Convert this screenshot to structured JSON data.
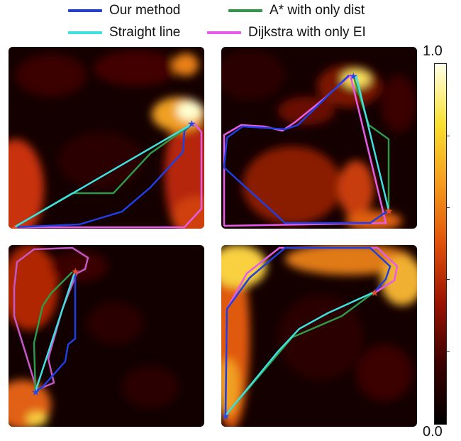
{
  "legend": {
    "items": [
      {
        "label": "Our method",
        "color": "#1f3fe0"
      },
      {
        "label": "A* with only dist",
        "color": "#2e9a48"
      },
      {
        "label": "Straight line",
        "color": "#3fe0e0"
      },
      {
        "label": "Dijkstra with only EI",
        "color": "#e45de8"
      }
    ]
  },
  "colorbar": {
    "max_label": "1.0",
    "min_label": "0.0",
    "colormap": [
      "#000000",
      "#3a0000",
      "#9a1200",
      "#e0500a",
      "#f59a1c",
      "#f8e030",
      "#ffffe8"
    ]
  }
}
